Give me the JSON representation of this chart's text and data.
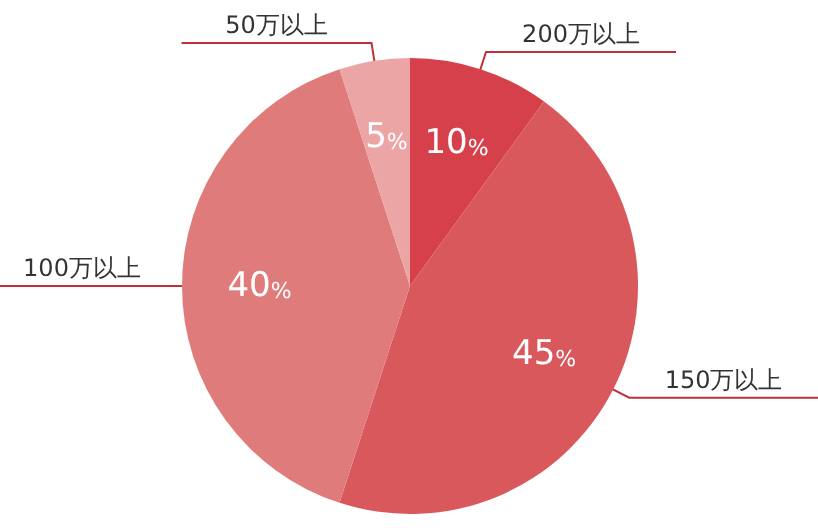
{
  "chart_data": {
    "type": "pie",
    "categories": [
      "200万以上",
      "150万以上",
      "100万以上",
      "50万以上"
    ],
    "values": [
      10,
      45,
      40,
      5
    ],
    "colors": [
      "#d6404a",
      "#d9585c",
      "#e07b7b",
      "#eba5a5"
    ],
    "value_labels": [
      "10%",
      "45%",
      "40%",
      "5%"
    ]
  }
}
